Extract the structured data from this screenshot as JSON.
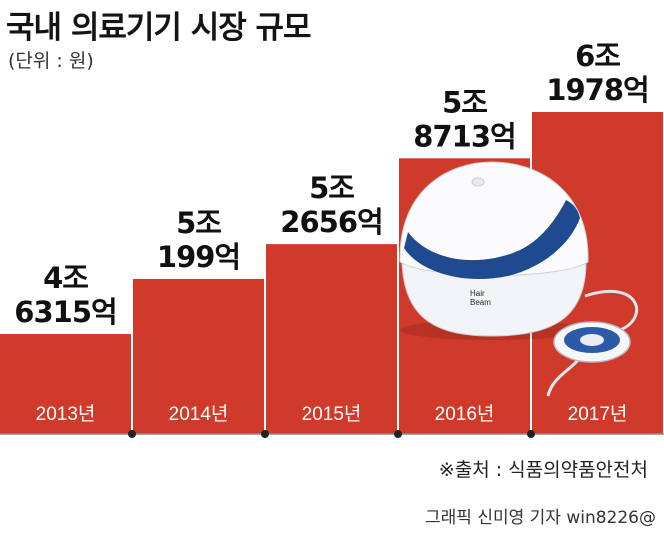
{
  "title": "국내 의료기기 시장 규모",
  "unit_label": "(단위 : 원)",
  "source": "※출처 : 식품의약품안전처",
  "credit": "그래픽 신미영 기자 win8226@",
  "colors": {
    "bar": "#cf3a2a",
    "axis": "#8a8a8a",
    "marker": "#c8c8c8"
  },
  "chart_data": {
    "type": "bar",
    "title": "국내 의료기기 시장 규모",
    "categories": [
      "2013년",
      "2014년",
      "2015년",
      "2016년",
      "2017년"
    ],
    "values": [
      4.6315,
      5.0199,
      5.2656,
      5.8713,
      6.1978
    ],
    "value_labels": [
      [
        "4조",
        "6315억"
      ],
      [
        "5조",
        "199억"
      ],
      [
        "5조",
        "2656억"
      ],
      [
        "5조",
        "8713억"
      ],
      [
        "6조",
        "1978억"
      ]
    ],
    "unit": "(단위 : 원)",
    "xlabel": "",
    "ylabel": "",
    "grid": false,
    "legend": "none"
  },
  "product_image": {
    "icon": "hair-beam-helmet-device",
    "brand_line1": "Hair",
    "brand_line2": "Beam"
  }
}
